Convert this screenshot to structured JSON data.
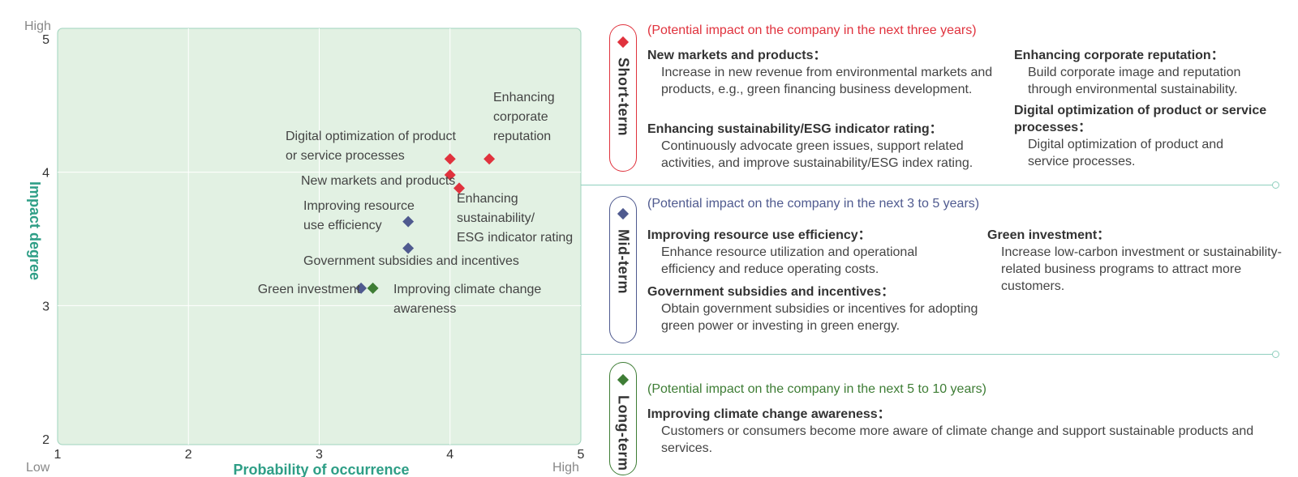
{
  "chart_data": {
    "type": "scatter",
    "xlabel": "Probability of occurrence",
    "ylabel": "Impact degree",
    "x_low_label": "Low",
    "x_high_label": "High",
    "y_high_label": "High",
    "xlim": [
      1,
      5
    ],
    "ylim": [
      2,
      5
    ],
    "xticks": [
      "1",
      "2",
      "3",
      "4",
      "5"
    ],
    "yticks": [
      "2",
      "3",
      "4",
      "5"
    ],
    "series": [
      {
        "name": "Short-term",
        "color": "#e0323d",
        "points": [
          {
            "label": "Enhancing corporate reputation",
            "x": 4.3,
            "y": 4.1
          },
          {
            "label": "Digital optimization of product or service processes",
            "x": 4.0,
            "y": 4.1
          },
          {
            "label": "New markets and products",
            "x": 4.0,
            "y": 3.98
          },
          {
            "label": "Enhancing sustainability/ESG indicator rating",
            "x": 4.07,
            "y": 3.88
          }
        ]
      },
      {
        "name": "Mid-term",
        "color": "#4f5a8f",
        "points": [
          {
            "label": "Improving resource use efficiency",
            "x": 3.68,
            "y": 3.63
          },
          {
            "label": "Government subsidies and incentives",
            "x": 3.68,
            "y": 3.43
          },
          {
            "label": "Green investment",
            "x": 3.32,
            "y": 3.13
          }
        ]
      },
      {
        "name": "Long-term",
        "color": "#3e7d35",
        "points": [
          {
            "label": "Improving climate change awareness",
            "x": 3.41,
            "y": 3.13
          }
        ]
      }
    ],
    "grid": true
  },
  "legend": {
    "short": {
      "term": "Short-term",
      "color": "#e0323d",
      "period": "(Potential impact on the company in the next three years)",
      "items": [
        {
          "title": "New markets and products：",
          "desc": "Increase in new revenue from environmental markets and products, e.g., green financing business development."
        },
        {
          "title": "Enhancing sustainability/ESG indicator rating：",
          "desc": "Continuously advocate green issues, support related activities, and improve sustainability/ESG index rating."
        },
        {
          "title": "Enhancing corporate reputation：",
          "desc": "Build corporate image and reputation through environmental sustainability."
        },
        {
          "title": "Digital optimization of product or service processes：",
          "desc": "Digital optimization of product and service processes."
        }
      ]
    },
    "mid": {
      "term": "Mid-term",
      "color": "#4f5a8f",
      "period": "(Potential impact on the company in the next 3 to 5 years)",
      "items": [
        {
          "title": "Improving resource use efficiency：",
          "desc": "Enhance resource utilization and operational efficiency and reduce operating costs."
        },
        {
          "title": "Government subsidies and incentives：",
          "desc": "Obtain government subsidies or incentives for adopting green power or investing in green energy."
        },
        {
          "title": "Green investment：",
          "desc": "Increase low-carbon investment or sustainability-related business programs to attract more customers."
        }
      ]
    },
    "long": {
      "term": "Long-term",
      "color": "#3e7d35",
      "period": "(Potential impact on the company in the next 5 to 10 years)",
      "items": [
        {
          "title": "Improving climate change awareness：",
          "desc": "Customers or consumers become more aware of climate change and support sustainable products and services."
        }
      ]
    }
  }
}
